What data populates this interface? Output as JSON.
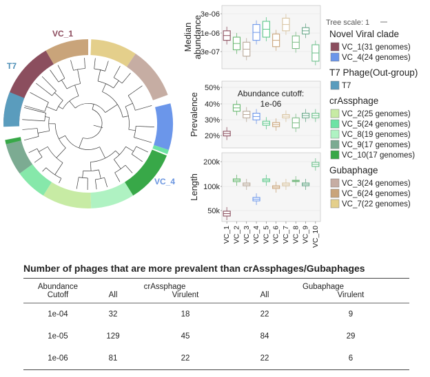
{
  "tree": {
    "labels": [
      {
        "text": "VC_1",
        "color": "#8b4a5c"
      },
      {
        "text": "T7",
        "color": "#4a8db5"
      },
      {
        "text": "VC_4",
        "color": "#6a95e0"
      }
    ],
    "segments": [
      {
        "name": "VC_1",
        "color": "#8b4e5e"
      },
      {
        "name": "VC_6",
        "color": "#c9a47a"
      },
      {
        "name": "VC_7",
        "color": "#e4cf8b"
      },
      {
        "name": "VC_3",
        "color": "#c6ada3"
      },
      {
        "name": "VC_4",
        "color": "#6b96ea"
      },
      {
        "name": "VC_5",
        "color": "#6de3a4"
      },
      {
        "name": "VC_10",
        "color": "#38a848"
      },
      {
        "name": "VC_8",
        "color": "#aff2c2"
      },
      {
        "name": "VC_2",
        "color": "#c7eba4"
      },
      {
        "name": "VC_5",
        "color": "#86e8aa"
      },
      {
        "name": "VC_9",
        "color": "#7cab92"
      },
      {
        "name": "VC_10",
        "color": "#38a848"
      },
      {
        "name": "T7",
        "color": "#5a9cbd"
      }
    ]
  },
  "panels": {
    "abundance": {
      "ylabel": "Median\nabundance",
      "ticks": [
        "3e-06",
        "1e-06",
        "3e-07"
      ]
    },
    "prevalence": {
      "ylabel": "Prevalence",
      "ticks": [
        "50%",
        "40%",
        "30%",
        "20%"
      ],
      "annotation_line1": "Abundance cutoff:",
      "annotation_line2": "1e-06"
    },
    "length": {
      "ylabel": "Length",
      "ticks": [
        "200k",
        "100k",
        "50k"
      ]
    },
    "x_categories": [
      "VC_1",
      "VC_2",
      "VC_3",
      "VC_4",
      "VC_5",
      "VC_6",
      "VC_7",
      "VC_8",
      "VC_9",
      "VC_10"
    ]
  },
  "legend": {
    "tree_scale": "Tree scale: 1",
    "groups": [
      {
        "title": "Novel Viral clade",
        "items": [
          {
            "label": "VC_1(31 genomes)",
            "color": "#8b4e5e"
          },
          {
            "label": "VC_4(24 genomes)",
            "color": "#6b96ea"
          }
        ]
      },
      {
        "title": "T7 Phage(Out-group)",
        "items": [
          {
            "label": "T7",
            "color": "#5a9cbd"
          }
        ]
      },
      {
        "title": "crAssphage",
        "items": [
          {
            "label": "VC_2(25 genomes)",
            "color": "#c7eba4"
          },
          {
            "label": "VC_5(24 genomes)",
            "color": "#6de3a4"
          },
          {
            "label": "VC_8(19 genomes)",
            "color": "#aff2c2"
          },
          {
            "label": "VC_9(17 genomes)",
            "color": "#7cab92"
          },
          {
            "label": "VC_10(17 genomes)",
            "color": "#38a848"
          }
        ]
      },
      {
        "title": "Gubaphage",
        "items": [
          {
            "label": "VC_3(24 genomes)",
            "color": "#c6ada3"
          },
          {
            "label": "VC_6(24 genomes)",
            "color": "#c9a47a"
          },
          {
            "label": "VC_7(22 genomes)",
            "color": "#e4cf8b"
          }
        ]
      }
    ]
  },
  "table": {
    "title": "Number of phages that are more prevalent than crAssphages/Gubaphages",
    "col_abundance_line1": "Abundance",
    "col_abundance_line2": "Cutoff",
    "group1": "crAssphage",
    "group2": "Gubaphage",
    "sub_all": "All",
    "sub_virulent": "Virulent",
    "rows": [
      {
        "cutoff": "1e-04",
        "c_all": "32",
        "c_vir": "18",
        "g_all": "22",
        "g_vir": "9"
      },
      {
        "cutoff": "1e-05",
        "c_all": "129",
        "c_vir": "45",
        "g_all": "84",
        "g_vir": "29"
      },
      {
        "cutoff": "1e-06",
        "c_all": "81",
        "c_vir": "22",
        "g_all": "22",
        "g_vir": "6"
      }
    ]
  }
}
